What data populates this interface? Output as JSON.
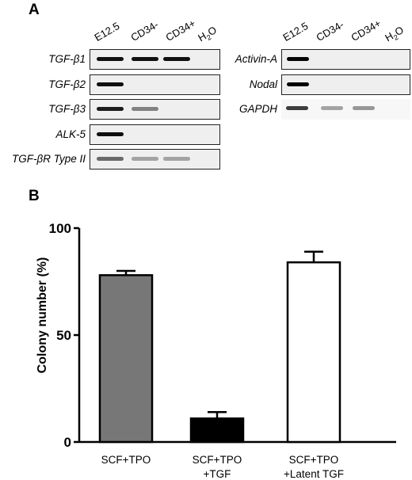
{
  "panel_a": {
    "label": "A",
    "left_lanes": [
      "E12.5",
      "CD34-",
      "CD34+",
      "H2O"
    ],
    "right_lanes": [
      "E12.5",
      "CD34-",
      "CD34+",
      "H2O"
    ],
    "left_genes": [
      {
        "name": "TGF-β1",
        "bands": [
          0.95,
          0.95,
          0.95,
          0
        ]
      },
      {
        "name": "TGF-β2",
        "bands": [
          0.95,
          0,
          0,
          0
        ]
      },
      {
        "name": "TGF-β3",
        "bands": [
          0.9,
          0.45,
          0,
          0
        ]
      },
      {
        "name": "ALK-5",
        "bands": [
          0.95,
          0,
          0,
          0
        ]
      },
      {
        "name": "TGF-βR Type II",
        "bands": [
          0.55,
          0.3,
          0.3,
          0
        ]
      }
    ],
    "right_genes": [
      {
        "name": "Activin-A",
        "bands": [
          1,
          0,
          0,
          0
        ]
      },
      {
        "name": "Nodal",
        "bands": [
          1,
          0,
          0,
          0
        ]
      },
      {
        "name": "GAPDH",
        "bands": [
          0.75,
          0.3,
          0.35,
          0
        ]
      }
    ]
  },
  "panel_b": {
    "label": "B",
    "chart_data": {
      "type": "bar",
      "categories": [
        "SCF+TPO",
        "SCF+TPO\n+TGF",
        "SCF+TPO\n+Latent TGF"
      ],
      "values": [
        78,
        11,
        84
      ],
      "errors": [
        2,
        3,
        5
      ],
      "bar_colors": [
        "#777777",
        "#000000",
        "#ffffff"
      ],
      "ylabel": "Colony number (%)",
      "ylim": [
        0,
        100
      ],
      "yticks": [
        0,
        50,
        100
      ],
      "title": "",
      "xlabel": ""
    }
  }
}
